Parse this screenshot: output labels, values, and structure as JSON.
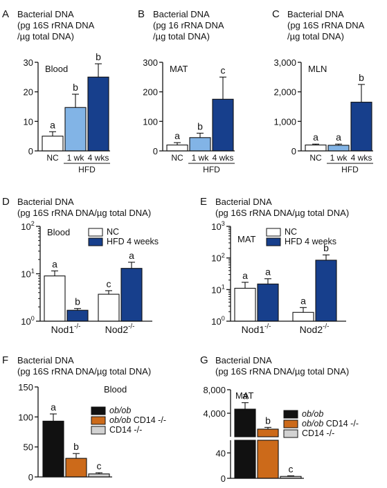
{
  "colors": {
    "white": "#ffffff",
    "light_blue": "#82b4e6",
    "dark_blue": "#173f8c",
    "black": "#111111",
    "orange": "#cc6a1a",
    "light_gray": "#d2d2d2",
    "error_bar": "#111111"
  },
  "chart_data": [
    {
      "panel": "A",
      "type": "bar",
      "title": "Bacterial DNA",
      "subtitle_lines": [
        "(pg 16S rRNA DNA",
        "/µg total DNA)"
      ],
      "tissue": "Blood",
      "scale": "linear",
      "ylim": [
        0,
        30
      ],
      "yticks": [
        "0",
        "10",
        "20",
        "30"
      ],
      "categories": [
        "NC",
        "1 wk",
        "4 wks"
      ],
      "group_label": "HFD",
      "values": [
        5,
        14.7,
        25
      ],
      "errors": [
        1.5,
        4.5,
        4.5
      ],
      "letters": [
        "a",
        "b",
        "b"
      ],
      "bar_colors": [
        "white",
        "light_blue",
        "dark_blue"
      ]
    },
    {
      "panel": "B",
      "type": "bar",
      "title": "Bacterial DNA",
      "subtitle_lines": [
        "(pg 16 rRNA DNA",
        "/µg total DNA)"
      ],
      "tissue": "MAT",
      "scale": "linear",
      "ylim": [
        0,
        300
      ],
      "yticks": [
        "0",
        "100",
        "200",
        "300"
      ],
      "categories": [
        "NC",
        "1 wk",
        "4 wks"
      ],
      "group_label": "HFD",
      "values": [
        20,
        45,
        175
      ],
      "errors": [
        8,
        15,
        75
      ],
      "letters": [
        "a",
        "b",
        "c"
      ],
      "bar_colors": [
        "white",
        "light_blue",
        "dark_blue"
      ]
    },
    {
      "panel": "C",
      "type": "bar",
      "title": "Bacterial DNA",
      "subtitle_lines": [
        "(pg 16S rRNA DNA",
        "/µg total DNA)"
      ],
      "tissue": "MLN",
      "scale": "linear",
      "ylim": [
        0,
        3000
      ],
      "yticks": [
        "0",
        "1,000",
        "2,000",
        "3,000"
      ],
      "categories": [
        "NC",
        "1 wk",
        "4 wks"
      ],
      "group_label": "HFD",
      "values": [
        200,
        190,
        1650
      ],
      "errors": [
        30,
        40,
        600
      ],
      "letters": [
        "a",
        "a",
        "b"
      ],
      "bar_colors": [
        "white",
        "light_blue",
        "dark_blue"
      ]
    },
    {
      "panel": "D",
      "type": "bar",
      "title": "Bacterial DNA",
      "subtitle_lines": [
        "(pg 16S rRNA DNA/µg total DNA)"
      ],
      "tissue": "Blood",
      "scale": "log",
      "ylim": [
        1,
        100
      ],
      "yticks": [
        {
          "base": "10",
          "exp": "0"
        },
        {
          "base": "10",
          "exp": "1"
        },
        {
          "base": "10",
          "exp": "2"
        }
      ],
      "categories": [
        {
          "name": "Nod1",
          "sup": "-/-"
        },
        {
          "name": "Nod2",
          "sup": "-/-"
        }
      ],
      "legend": [
        {
          "label": "NC",
          "color": "white"
        },
        {
          "label": "HFD 4 weeks",
          "color": "dark_blue"
        }
      ],
      "series": [
        {
          "values": [
            9,
            3.7
          ],
          "errors": [
            2.5,
            0.7
          ],
          "letters": [
            "a",
            "c"
          ],
          "color": "white"
        },
        {
          "values": [
            1.7,
            13
          ],
          "errors": [
            0.15,
            4.5
          ],
          "letters": [
            "b",
            "a"
          ],
          "color": "dark_blue"
        }
      ]
    },
    {
      "panel": "E",
      "type": "bar",
      "title": "Bacterial DNA",
      "subtitle_lines": [
        "(pg 16S rRNA DNA/µg total DNA)"
      ],
      "tissue": "MAT",
      "scale": "log",
      "ylim": [
        1,
        1000
      ],
      "yticks": [
        {
          "base": "10",
          "exp": "0"
        },
        {
          "base": "10",
          "exp": "1"
        },
        {
          "base": "10",
          "exp": "2"
        },
        {
          "base": "10",
          "exp": "3"
        }
      ],
      "categories": [
        {
          "name": "Nod1",
          "sup": "-/-"
        },
        {
          "name": "Nod2",
          "sup": "-/-"
        }
      ],
      "legend": [
        {
          "label": "NC",
          "color": "white"
        },
        {
          "label": "HFD 4 weeks",
          "color": "dark_blue"
        }
      ],
      "series": [
        {
          "values": [
            11,
            1.9
          ],
          "errors": [
            6,
            0.8
          ],
          "letters": [
            "a",
            "a"
          ],
          "color": "white"
        },
        {
          "values": [
            15,
            85
          ],
          "errors": [
            7,
            40
          ],
          "letters": [
            "a",
            "b"
          ],
          "color": "dark_blue"
        }
      ]
    },
    {
      "panel": "F",
      "type": "bar",
      "title": "Bacterial DNA",
      "subtitle_lines": [
        "(pg 16S rRNA DNA/µg total DNA)"
      ],
      "tissue": "Blood",
      "scale": "linear",
      "ylim": [
        0,
        150
      ],
      "yticks": [
        "0",
        "50",
        "100",
        "150"
      ],
      "categories": [
        "ob/ob",
        "ob/ob CD14 -/-",
        "CD14 -/-"
      ],
      "values": [
        93,
        31,
        5
      ],
      "errors": [
        12,
        8,
        2
      ],
      "letters": [
        "a",
        "b",
        "c"
      ],
      "bar_colors": [
        "black",
        "orange",
        "light_gray"
      ],
      "legend": [
        {
          "italic": "ob/ob",
          "rest": "",
          "color": "black"
        },
        {
          "italic": "ob/ob",
          "rest": " CD14 -/-",
          "color": "orange"
        },
        {
          "italic": "",
          "rest": "CD14 -/-",
          "color": "light_gray"
        }
      ]
    },
    {
      "panel": "G",
      "type": "bar",
      "title": "Bacterial DNA",
      "subtitle_lines": [
        "(pg 16S rRNA DNA/µg total DNA)"
      ],
      "tissue": "MAT",
      "scale": "broken",
      "ylim_lower": [
        0,
        60
      ],
      "ylim_upper": [
        0,
        8000
      ],
      "yticks_lower": [
        "0",
        "40"
      ],
      "yticks_upper": [
        "4,000",
        "8,000"
      ],
      "categories": [
        "ob/ob",
        "ob/ob CD14 -/-",
        "CD14 -/-"
      ],
      "values": [
        4700,
        1300,
        3
      ],
      "errors": [
        1100,
        300,
        1
      ],
      "letters": [
        "a",
        "b",
        "c"
      ],
      "bar_colors": [
        "black",
        "orange",
        "light_gray"
      ],
      "legend": [
        {
          "italic": "ob/ob",
          "rest": "",
          "color": "black"
        },
        {
          "italic": "ob/ob",
          "rest": " CD14 -/-",
          "color": "orange"
        },
        {
          "italic": "",
          "rest": "CD14 -/-",
          "color": "light_gray"
        }
      ]
    }
  ]
}
